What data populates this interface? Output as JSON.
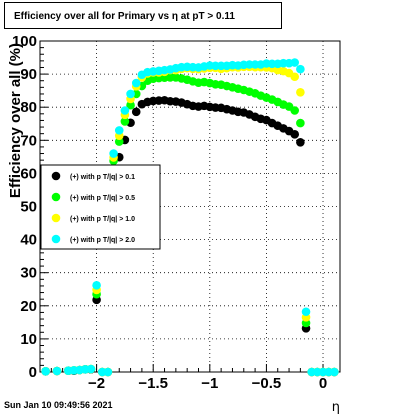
{
  "chart_data": {
    "type": "scatter",
    "title": "Efficiency over all for Primary vs   η at pT > 0.11",
    "xlabel": "η",
    "ylabel": "Efficiency over all (%)",
    "xlim": [
      -2.5,
      0.15
    ],
    "ylim": [
      0,
      100
    ],
    "xticks": [
      -2,
      -1.5,
      -1,
      -0.5,
      0
    ],
    "xtick_labels": [
      "−2",
      "−1.5",
      "−1",
      "−0.5",
      "0"
    ],
    "yticks": [
      0,
      10,
      20,
      30,
      40,
      50,
      60,
      70,
      80,
      90,
      100
    ],
    "ytick_labels": [
      "0",
      "10",
      "20",
      "30",
      "40",
      "50",
      "60",
      "70",
      "80",
      "90",
      "100"
    ],
    "grid": true,
    "legend_position": "left-middle",
    "series": [
      {
        "name": "(+) with p T/|q| > 0.1",
        "color": "#000000",
        "x": [
          -2.45,
          -2.35,
          -2.25,
          -2.2,
          -2.15,
          -2.1,
          -2.05,
          -2.0,
          -1.95,
          -1.9,
          -1.85,
          -1.8,
          -1.75,
          -1.7,
          -1.65,
          -1.6,
          -1.55,
          -1.5,
          -1.45,
          -1.4,
          -1.35,
          -1.3,
          -1.25,
          -1.2,
          -1.15,
          -1.1,
          -1.05,
          -1.0,
          -0.95,
          -0.9,
          -0.85,
          -0.8,
          -0.75,
          -0.7,
          -0.65,
          -0.6,
          -0.55,
          -0.5,
          -0.45,
          -0.4,
          -0.35,
          -0.3,
          -0.25,
          -0.2,
          -0.15,
          -0.1,
          -0.05,
          0.0,
          0.05,
          0.1
        ],
        "y": [
          0.2,
          0.3,
          0.4,
          0.4,
          0.6,
          0.8,
          0.8,
          21.8,
          0.0,
          0.0,
          61.2,
          64.9,
          70.1,
          75.3,
          78.6,
          80.9,
          81.6,
          81.9,
          82.0,
          82.1,
          81.8,
          81.7,
          81.4,
          80.9,
          80.4,
          80.2,
          80.4,
          80.1,
          79.9,
          79.8,
          79.4,
          79.0,
          78.6,
          78.4,
          77.8,
          77.1,
          76.5,
          76.1,
          75.2,
          74.4,
          73.6,
          72.8,
          71.8,
          69.4,
          13.2,
          0.0,
          0.0,
          0.0,
          0.0,
          0.0
        ]
      },
      {
        "name": "(+) with p T/|q| > 0.5",
        "color": "#00ff00",
        "x": [
          -2.45,
          -2.35,
          -2.25,
          -2.2,
          -2.15,
          -2.1,
          -2.05,
          -2.0,
          -1.95,
          -1.9,
          -1.85,
          -1.8,
          -1.75,
          -1.7,
          -1.65,
          -1.6,
          -1.55,
          -1.5,
          -1.45,
          -1.4,
          -1.35,
          -1.3,
          -1.25,
          -1.2,
          -1.15,
          -1.1,
          -1.05,
          -1.0,
          -0.95,
          -0.9,
          -0.85,
          -0.8,
          -0.75,
          -0.7,
          -0.65,
          -0.6,
          -0.55,
          -0.5,
          -0.45,
          -0.4,
          -0.35,
          -0.3,
          -0.25,
          -0.2,
          -0.15,
          -0.1,
          -0.05,
          0.0,
          0.05,
          0.1
        ],
        "y": [
          0.2,
          0.3,
          0.4,
          0.5,
          0.6,
          0.8,
          0.9,
          23.5,
          0.0,
          0.0,
          63.8,
          69.6,
          75.7,
          80.6,
          84.0,
          86.4,
          88.0,
          88.6,
          88.8,
          88.9,
          89.0,
          89.0,
          88.7,
          88.3,
          87.8,
          87.4,
          87.6,
          87.3,
          86.9,
          86.8,
          86.4,
          86.0,
          85.6,
          85.2,
          84.7,
          84.2,
          83.5,
          82.9,
          82.3,
          81.6,
          80.8,
          80.2,
          79.0,
          75.2,
          14.8,
          0.0,
          0.0,
          0.0,
          0.0,
          0.0
        ]
      },
      {
        "name": "(+) with p T/|q| > 1.0",
        "color": "#ffff00",
        "x": [
          -2.45,
          -2.35,
          -2.25,
          -2.2,
          -2.15,
          -2.1,
          -2.05,
          -2.0,
          -1.95,
          -1.9,
          -1.85,
          -1.8,
          -1.75,
          -1.7,
          -1.65,
          -1.6,
          -1.55,
          -1.5,
          -1.45,
          -1.4,
          -1.35,
          -1.3,
          -1.25,
          -1.2,
          -1.15,
          -1.1,
          -1.05,
          -1.0,
          -0.95,
          -0.9,
          -0.85,
          -0.8,
          -0.75,
          -0.7,
          -0.65,
          -0.6,
          -0.55,
          -0.5,
          -0.45,
          -0.4,
          -0.35,
          -0.3,
          -0.25,
          -0.2,
          -0.15,
          -0.1,
          -0.05,
          0.0,
          0.05,
          0.1
        ],
        "y": [
          0.2,
          0.3,
          0.4,
          0.5,
          0.6,
          0.8,
          0.9,
          24.8,
          0.0,
          0.0,
          64.8,
          71.4,
          77.7,
          82.5,
          86.3,
          89.0,
          90.2,
          90.5,
          90.5,
          90.7,
          91.2,
          91.2,
          91.6,
          91.8,
          91.6,
          91.5,
          91.7,
          91.9,
          91.9,
          91.6,
          91.8,
          92.1,
          92.0,
          92.2,
          92.2,
          92.1,
          92.1,
          92.0,
          91.8,
          91.2,
          90.9,
          90.3,
          89.2,
          84.5,
          16.5,
          0.0,
          0.0,
          0.0,
          0.0,
          0.0
        ]
      },
      {
        "name": "(+) with p T/|q| > 2.0",
        "color": "#00ffff",
        "x": [
          -2.45,
          -2.35,
          -2.25,
          -2.2,
          -2.15,
          -2.1,
          -2.05,
          -2.0,
          -1.95,
          -1.9,
          -1.85,
          -1.8,
          -1.75,
          -1.7,
          -1.65,
          -1.6,
          -1.55,
          -1.5,
          -1.45,
          -1.4,
          -1.35,
          -1.3,
          -1.25,
          -1.2,
          -1.15,
          -1.1,
          -1.05,
          -1.0,
          -0.95,
          -0.9,
          -0.85,
          -0.8,
          -0.75,
          -0.7,
          -0.65,
          -0.6,
          -0.55,
          -0.5,
          -0.45,
          -0.4,
          -0.35,
          -0.3,
          -0.25,
          -0.2,
          -0.15,
          -0.1,
          -0.05,
          0.0,
          0.05,
          0.1
        ],
        "y": [
          0.2,
          0.3,
          0.4,
          0.5,
          0.6,
          0.8,
          0.9,
          26.2,
          0.0,
          0.0,
          66.0,
          73.0,
          79.0,
          84.0,
          87.3,
          89.8,
          90.6,
          90.8,
          91.0,
          91.2,
          91.4,
          91.8,
          92.1,
          92.2,
          92.1,
          92.0,
          92.3,
          92.6,
          92.5,
          92.5,
          92.5,
          92.7,
          92.6,
          92.8,
          92.9,
          92.9,
          92.9,
          93.2,
          93.1,
          93.1,
          93.3,
          93.3,
          93.5,
          91.5,
          18.2,
          0.0,
          0.0,
          0.0,
          0.0,
          0.0
        ]
      }
    ]
  },
  "footer": {
    "timestamp": "Sun Jan 10 09:49:56 2021"
  }
}
